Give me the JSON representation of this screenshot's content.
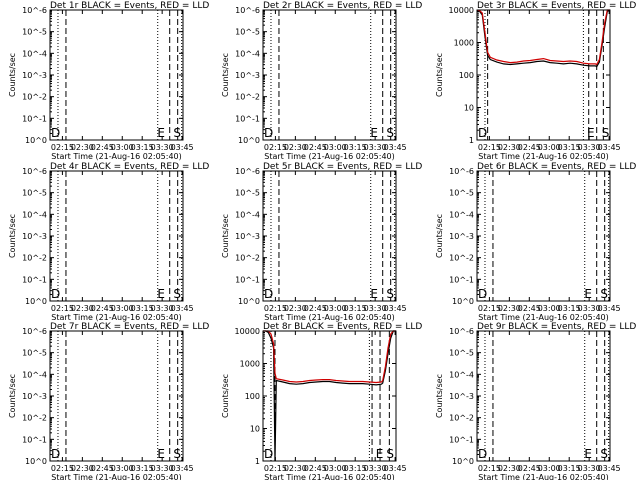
{
  "figure": {
    "time_ticks": [
      "02:15",
      "02:30",
      "02:45",
      "03:00",
      "03:15",
      "03:30",
      "03:45"
    ],
    "xlabel": "Start Time (21-Aug-16 02:05:40)",
    "ylabel": "Counts/sec",
    "empty_ytick_labels": [
      "10^0",
      "10^-1",
      "10^-2",
      "10^-3",
      "10^-4",
      "10^-5",
      "10^-6"
    ],
    "log_ytick_labels": [
      "1",
      "10",
      "100",
      "1000",
      "10000"
    ],
    "marker_labels": {
      "D": "D",
      "E": "E",
      "S": "S"
    },
    "colors": {
      "events": "#000000",
      "lld": "#d00000"
    }
  },
  "chart_data": [
    {
      "id": "det1",
      "type": "line",
      "title": "Det 1r BLACK = Events, RED = LLD",
      "xlabel": "Start Time (21-Aug-16 02:05:40)",
      "ylabel": "Counts/sec",
      "x_unit": "minutes since 02:05:40",
      "ylim": [
        1e-06,
        1
      ],
      "yscale": "log",
      "series": [],
      "vlines_dashed": [
        12,
        90,
        96
      ],
      "vlines_dotted": [
        6,
        81,
        99
      ],
      "markers": [
        [
          "D",
          0
        ],
        [
          "E",
          80
        ],
        [
          "S",
          92
        ]
      ]
    },
    {
      "id": "det2",
      "type": "line",
      "title": "Det 2r BLACK = Events, RED = LLD",
      "xlabel": "Start Time (21-Aug-16 02:05:40)",
      "ylabel": "Counts/sec",
      "x_unit": "minutes since 02:05:40",
      "ylim": [
        1e-06,
        1
      ],
      "yscale": "log",
      "series": [],
      "vlines_dashed": [
        12,
        90,
        96
      ],
      "vlines_dotted": [
        6,
        81,
        99
      ],
      "markers": [
        [
          "D",
          0
        ],
        [
          "E",
          80
        ],
        [
          "S",
          92
        ]
      ]
    },
    {
      "id": "det3",
      "type": "line",
      "title": "Det 3r BLACK = Events, RED = LLD",
      "xlabel": "Start Time (21-Aug-16 02:05:40)",
      "ylabel": "Counts/sec",
      "x_unit": "minutes since 02:05:40",
      "ylim": [
        1,
        10000
      ],
      "yscale": "log",
      "series": [
        {
          "role": "events",
          "x": [
            0,
            2,
            4,
            6,
            8,
            10,
            15,
            20,
            25,
            30,
            35,
            40,
            45,
            50,
            55,
            60,
            65,
            70,
            75,
            80,
            85,
            89,
            90,
            92,
            94,
            96,
            98,
            100
          ],
          "y": [
            10000,
            9000,
            7000,
            1500,
            400,
            300,
            250,
            220,
            210,
            220,
            230,
            240,
            260,
            270,
            240,
            230,
            220,
            230,
            220,
            200,
            190,
            190,
            180,
            250,
            800,
            3000,
            9000,
            10000
          ]
        },
        {
          "role": "lld",
          "x": [
            0,
            2,
            4,
            6,
            8,
            10,
            15,
            20,
            25,
            30,
            35,
            40,
            45,
            50,
            55,
            60,
            65,
            70,
            75,
            80,
            85,
            89,
            90,
            92,
            94,
            96,
            98,
            100
          ],
          "y": [
            10000,
            9500,
            8000,
            2000,
            500,
            350,
            290,
            260,
            240,
            250,
            270,
            280,
            300,
            320,
            280,
            270,
            260,
            270,
            260,
            230,
            220,
            220,
            210,
            300,
            1000,
            4000,
            10000,
            10000
          ]
        }
      ],
      "vlines_dashed": [
        8,
        84,
        90,
        95
      ],
      "vlines_dotted": [
        6,
        80
      ],
      "markers": [
        [
          "D",
          0
        ],
        [
          "E",
          82
        ],
        [
          "S",
          93
        ]
      ]
    },
    {
      "id": "det4",
      "type": "line",
      "title": "Det 4r BLACK = Events, RED = LLD",
      "xlabel": "Start Time (21-Aug-16 02:05:40)",
      "ylabel": "Counts/sec",
      "x_unit": "minutes since 02:05:40",
      "ylim": [
        1e-06,
        1
      ],
      "yscale": "log",
      "series": [],
      "vlines_dashed": [
        12,
        90,
        96
      ],
      "vlines_dotted": [
        6,
        81,
        99
      ],
      "markers": [
        [
          "D",
          0
        ],
        [
          "E",
          80
        ],
        [
          "S",
          92
        ]
      ]
    },
    {
      "id": "det5",
      "type": "line",
      "title": "Det 5r BLACK = Events, RED = LLD",
      "xlabel": "Start Time (21-Aug-16 02:05:40)",
      "ylabel": "Counts/sec",
      "x_unit": "minutes since 02:05:40",
      "ylim": [
        1e-06,
        1
      ],
      "yscale": "log",
      "series": [],
      "vlines_dashed": [
        12,
        90,
        96
      ],
      "vlines_dotted": [
        6,
        81,
        99
      ],
      "markers": [
        [
          "D",
          0
        ],
        [
          "E",
          80
        ],
        [
          "S",
          92
        ]
      ]
    },
    {
      "id": "det6",
      "type": "line",
      "title": "Det 6r BLACK = Events, RED = LLD",
      "xlabel": "Start Time (21-Aug-16 02:05:40)",
      "ylabel": "Counts/sec",
      "x_unit": "minutes since 02:05:40",
      "ylim": [
        1e-06,
        1
      ],
      "yscale": "log",
      "series": [],
      "vlines_dashed": [
        12,
        90,
        96
      ],
      "vlines_dotted": [
        6,
        81,
        99
      ],
      "markers": [
        [
          "D",
          0
        ],
        [
          "E",
          80
        ],
        [
          "S",
          92
        ]
      ]
    },
    {
      "id": "det7",
      "type": "line",
      "title": "Det 7r BLACK = Events, RED = LLD",
      "xlabel": "Start Time (21-Aug-16 02:05:40)",
      "ylabel": "Counts/sec",
      "x_unit": "minutes since 02:05:40",
      "ylim": [
        1e-06,
        1
      ],
      "yscale": "log",
      "series": [],
      "vlines_dashed": [
        12,
        90,
        96
      ],
      "vlines_dotted": [
        6,
        81,
        99
      ],
      "markers": [
        [
          "D",
          0
        ],
        [
          "E",
          80
        ],
        [
          "S",
          92
        ]
      ]
    },
    {
      "id": "det8",
      "type": "line",
      "title": "Det 8r BLACK = Events, RED = LLD",
      "xlabel": "Start Time (21-Aug-16 02:05:40)",
      "ylabel": "Counts/sec",
      "x_unit": "minutes since 02:05:40",
      "ylim": [
        1,
        10000
      ],
      "yscale": "log",
      "series": [
        {
          "role": "events",
          "x": [
            0,
            2,
            4,
            6,
            8,
            9,
            10,
            15,
            20,
            25,
            30,
            35,
            40,
            45,
            50,
            55,
            60,
            65,
            70,
            75,
            80,
            85,
            89,
            90,
            92,
            94,
            96,
            98,
            100
          ],
          "y": [
            10000,
            10000,
            9000,
            6000,
            3000,
            1,
            300,
            270,
            240,
            230,
            240,
            260,
            270,
            280,
            280,
            260,
            250,
            240,
            240,
            240,
            230,
            220,
            230,
            250,
            600,
            2000,
            6000,
            10000,
            10000
          ]
        },
        {
          "role": "lld",
          "x": [
            0,
            2,
            4,
            6,
            8,
            9,
            10,
            15,
            20,
            25,
            30,
            35,
            40,
            45,
            50,
            55,
            60,
            65,
            70,
            75,
            80,
            85,
            89,
            90,
            92,
            94,
            96,
            98,
            100
          ],
          "y": [
            10000,
            10000,
            10000,
            8000,
            4000,
            500,
            340,
            310,
            280,
            270,
            280,
            300,
            310,
            320,
            320,
            300,
            290,
            280,
            280,
            280,
            270,
            260,
            270,
            300,
            800,
            3000,
            8000,
            10000,
            10000
          ]
        }
      ],
      "vlines_dashed": [
        9,
        82,
        88,
        95
      ],
      "vlines_dotted": [
        6,
        80
      ],
      "markers": [
        [
          "D",
          0
        ],
        [
          "E",
          84
        ],
        [
          "S",
          92
        ]
      ]
    },
    {
      "id": "det9",
      "type": "line",
      "title": "Det 9r BLACK = Events, RED = LLD",
      "xlabel": "Start Time (21-Aug-16 02:05:40)",
      "ylabel": "Counts/sec",
      "x_unit": "minutes since 02:05:40",
      "ylim": [
        1e-06,
        1
      ],
      "yscale": "log",
      "series": [],
      "vlines_dashed": [
        12,
        90,
        96
      ],
      "vlines_dotted": [
        6,
        81,
        99
      ],
      "markers": [
        [
          "D",
          0
        ],
        [
          "E",
          80
        ],
        [
          "S",
          92
        ]
      ]
    }
  ]
}
